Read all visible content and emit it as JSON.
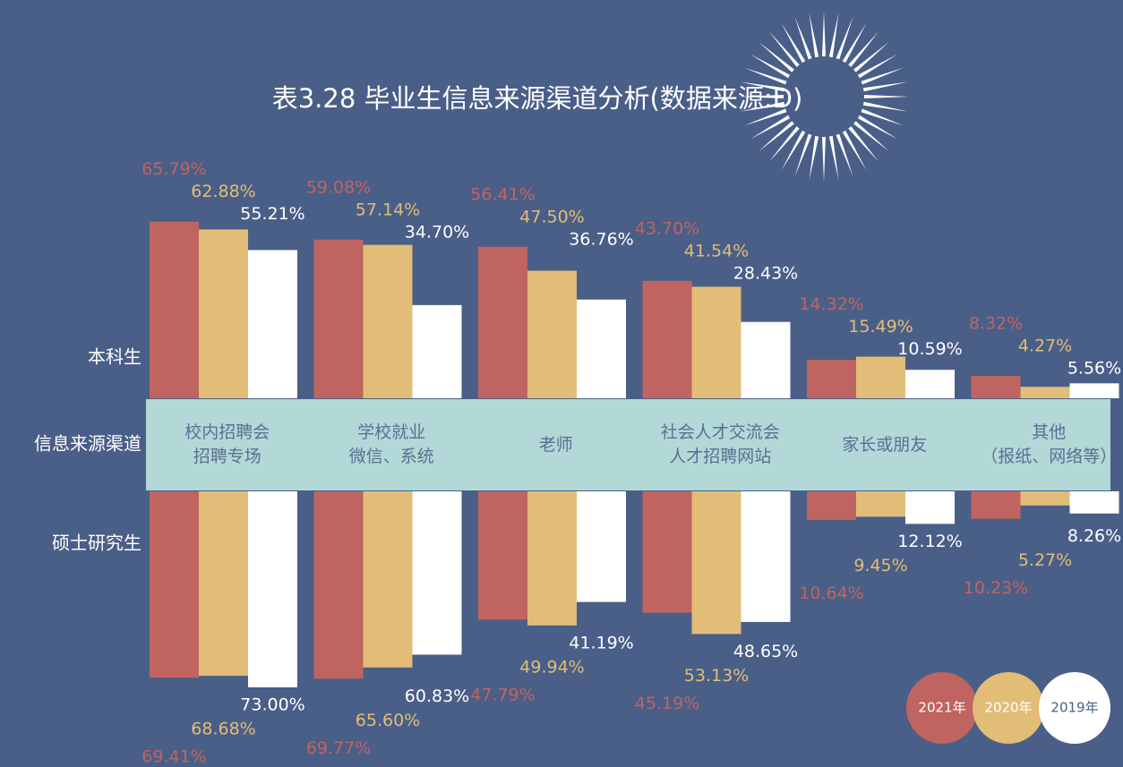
{
  "chart_data": {
    "type": "bar",
    "title": "表3.28 毕业生信息来源渠道分析(数据来源:D)",
    "axis_label": "信息来源渠道",
    "rows": [
      "本科生",
      "硕士研究生"
    ],
    "categories": [
      "校内招聘会\n招聘专场",
      "学校就业\n微信、系统",
      "老师",
      "社会人才交流会\n人才招聘网站",
      "家长或朋友",
      "其他\n（报纸、网络等）"
    ],
    "series": [
      {
        "name": "2021年",
        "color": "#bf6461",
        "values": [
          [
            65.79,
            59.08,
            56.41,
            43.7,
            14.32,
            8.32
          ],
          [
            69.41,
            69.77,
            47.79,
            45.19,
            10.64,
            10.23
          ]
        ],
        "value_labels": [
          [
            "65.79%",
            "59.08%",
            "56.41%",
            "43.70%",
            "14.32%",
            "8.32%"
          ],
          [
            "69.41%",
            "69.77%",
            "47.79%",
            "45.19%",
            "10.64%",
            "10.23%"
          ]
        ]
      },
      {
        "name": "2020年",
        "color": "#e1bd78",
        "values": [
          [
            62.88,
            57.14,
            47.5,
            41.54,
            15.49,
            4.27
          ],
          [
            68.68,
            65.6,
            49.94,
            53.13,
            9.45,
            5.27
          ]
        ],
        "value_labels": [
          [
            "62.88%",
            "57.14%",
            "47.50%",
            "41.54%",
            "15.49%",
            "4.27%"
          ],
          [
            "68.68%",
            "65.60%",
            "49.94%",
            "53.13%",
            "9.45%",
            "5.27%"
          ]
        ]
      },
      {
        "name": "2019年",
        "color": "#ffffff",
        "values": [
          [
            55.21,
            34.7,
            36.76,
            28.43,
            10.59,
            5.56
          ],
          [
            73.0,
            60.83,
            41.19,
            48.65,
            12.12,
            8.26
          ]
        ],
        "value_labels": [
          [
            "55.21%",
            "34.70%",
            "36.76%",
            "28.43%",
            "10.59%",
            "5.56%"
          ],
          [
            "73.00%",
            "60.83%",
            "41.19%",
            "48.65%",
            "12.12%",
            "8.26%"
          ]
        ]
      }
    ]
  }
}
